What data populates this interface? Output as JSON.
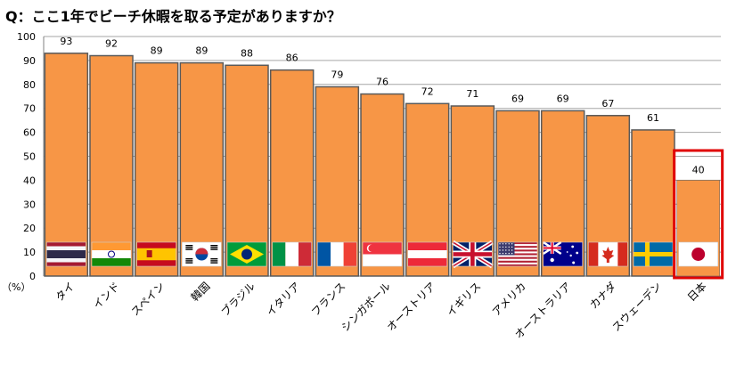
{
  "question": "Q：ここ1年でビーチ休暇を取る予定がありますか？",
  "chart_data": {
    "type": "bar",
    "title": "Q：ここ1年でビーチ休暇を取る予定がありますか？",
    "ylabel": "（%）",
    "xlabel": "",
    "ylim": [
      0,
      100
    ],
    "yticks": [
      0,
      10,
      20,
      30,
      40,
      50,
      60,
      70,
      80,
      90,
      100
    ],
    "grid": true,
    "categories": [
      "タイ",
      "インド",
      "スペイン",
      "韓国",
      "ブラジル",
      "イタリア",
      "フランス",
      "シンガポール",
      "オーストリア",
      "イギリス",
      "アメリカ",
      "オーストラリア",
      "カナダ",
      "スウェーデン",
      "日本"
    ],
    "values": [
      93,
      92,
      89,
      89,
      88,
      86,
      79,
      76,
      72,
      71,
      69,
      69,
      67,
      61,
      40
    ],
    "flags": [
      "thailand-flag",
      "india-flag",
      "spain-flag",
      "korea-flag",
      "brazil-flag",
      "italy-flag",
      "france-flag",
      "singapore-flag",
      "austria-flag",
      "uk-flag",
      "usa-flag",
      "australia-flag",
      "canada-flag",
      "sweden-flag",
      "japan-flag"
    ],
    "highlight_category": "日本",
    "colors": {
      "bar": "#F79646",
      "bar_border": "#5A5A5A",
      "highlight": "#E00000",
      "grid": "#A6A6A6"
    }
  }
}
